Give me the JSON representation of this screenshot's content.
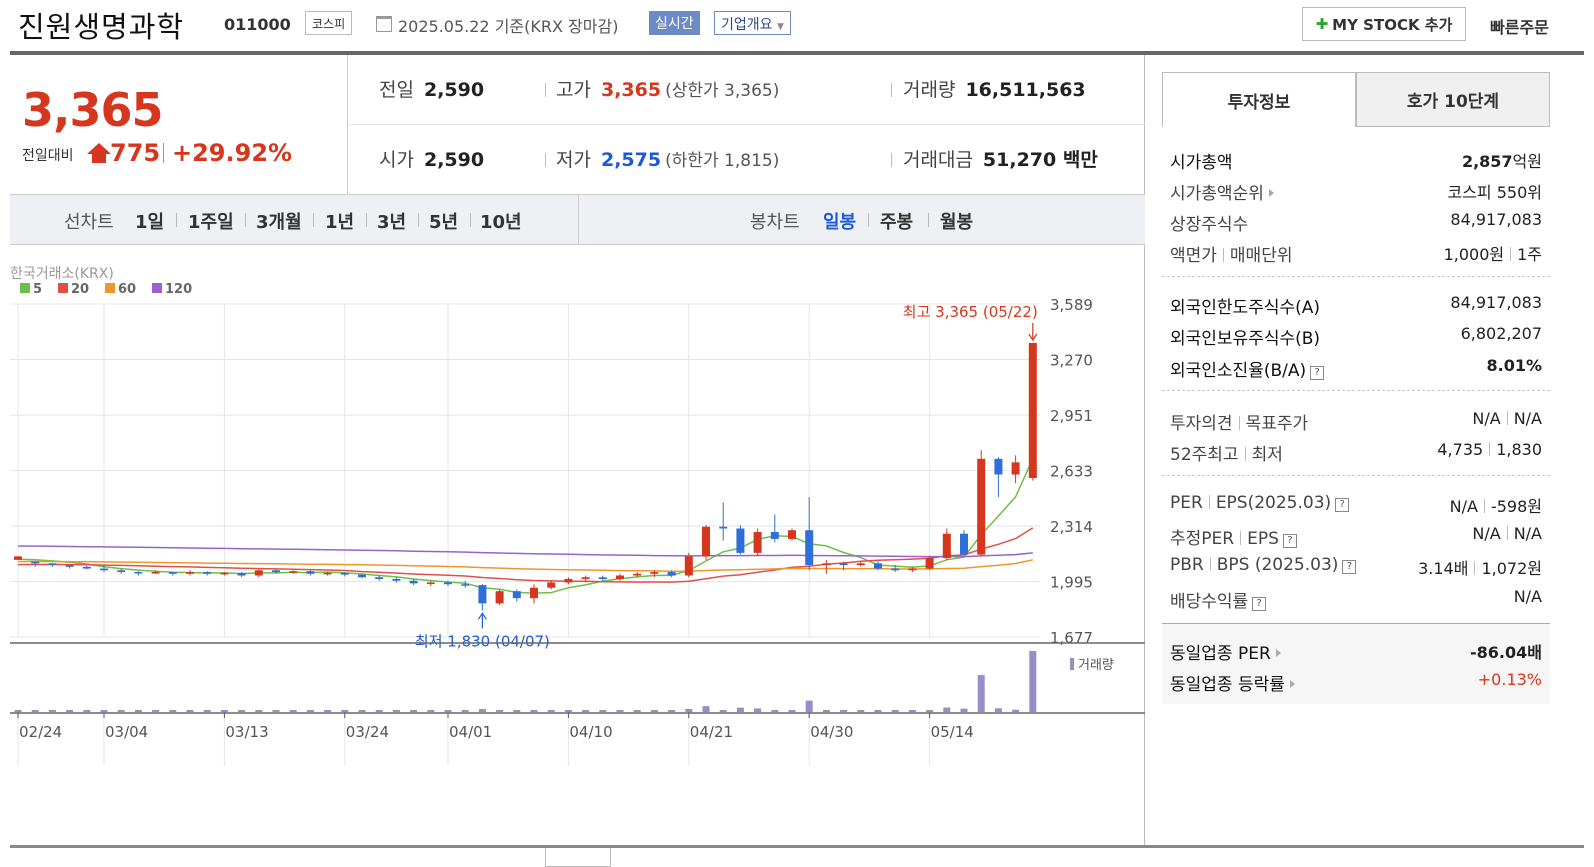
{
  "header": {
    "stock_name": "진원생명과학",
    "stock_code": "011000",
    "market": "코스피",
    "date_text": "2025.05.22  기준(KRX 장마감)",
    "realtime_label": "실시간",
    "company_overview_label": "기업개요",
    "my_stock_label": "MY STOCK 추가",
    "quick_order_label": "빠른주문"
  },
  "price": {
    "current": "3,365",
    "change_label": "전일대비",
    "change": "775",
    "change_pct": "+29.92%"
  },
  "quotes": {
    "prev_close_label": "전일",
    "prev_close": "2,590",
    "high_label": "고가",
    "high": "3,365",
    "upper_limit": "(상한가 3,365)",
    "volume_label": "거래량",
    "volume": "16,511,563",
    "open_label": "시가",
    "open": "2,590",
    "low_label": "저가",
    "low": "2,575",
    "lower_limit": "(하한가 1,815)",
    "value_label": "거래대금",
    "value": "51,270 백만"
  },
  "period_tabs": {
    "line_label": "선차트",
    "items": [
      "1일",
      "1주일",
      "3개월",
      "1년",
      "3년",
      "5년",
      "10년"
    ],
    "candle_label": "봉차트",
    "candle_items": [
      "일봉",
      "주봉",
      "월봉"
    ],
    "selected": "일봉"
  },
  "chart_data": {
    "type": "candlestick",
    "source_label": "한국거래소(KRX)",
    "ma_legend": [
      {
        "name": "5",
        "color": "#6cbf4b"
      },
      {
        "name": "20",
        "color": "#e0504a"
      },
      {
        "name": "60",
        "color": "#f0962d"
      },
      {
        "name": "120",
        "color": "#9a62d1"
      }
    ],
    "up_color": "#d6361e",
    "down_color": "#2f6fd8",
    "y_ticks": [
      "3,589",
      "3,270",
      "2,951",
      "2,633",
      "2,314",
      "1,995",
      "1,677"
    ],
    "ylim": [
      1677,
      3589
    ],
    "x_ticks": [
      {
        "label": "02/24",
        "index": 0
      },
      {
        "label": "03/04",
        "index": 5
      },
      {
        "label": "03/13",
        "index": 12
      },
      {
        "label": "03/24",
        "index": 19
      },
      {
        "label": "04/01",
        "index": 25
      },
      {
        "label": "04/10",
        "index": 32
      },
      {
        "label": "04/21",
        "index": 39
      },
      {
        "label": "04/30",
        "index": 46
      },
      {
        "label": "05/14",
        "index": 53
      }
    ],
    "annotation_high": "최고 3,365 (05/22)",
    "annotation_low": "최저 1,830 (04/07)",
    "volume_label": "거래량",
    "candles": [
      [
        2120,
        2140,
        2120,
        2140
      ],
      [
        2110,
        2110,
        2080,
        2100
      ],
      [
        2100,
        2100,
        2080,
        2090
      ],
      [
        2090,
        2090,
        2070,
        2080
      ],
      [
        2080,
        2085,
        2065,
        2070
      ],
      [
        2070,
        2090,
        2050,
        2060
      ],
      [
        2060,
        2070,
        2040,
        2050
      ],
      [
        2050,
        2055,
        2030,
        2045
      ],
      [
        2045,
        2060,
        2040,
        2050
      ],
      [
        2050,
        2050,
        2030,
        2040
      ],
      [
        2040,
        2060,
        2030,
        2050
      ],
      [
        2050,
        2055,
        2030,
        2040
      ],
      [
        2040,
        2050,
        2030,
        2045
      ],
      [
        2045,
        2050,
        2020,
        2030
      ],
      [
        2030,
        2070,
        2020,
        2060
      ],
      [
        2060,
        2065,
        2040,
        2050
      ],
      [
        2050,
        2060,
        2040,
        2055
      ],
      [
        2055,
        2060,
        2030,
        2040
      ],
      [
        2040,
        2050,
        2030,
        2045
      ],
      [
        2045,
        2050,
        2025,
        2035
      ],
      [
        2035,
        2040,
        2015,
        2020
      ],
      [
        2020,
        2030,
        2000,
        2010
      ],
      [
        2010,
        2020,
        1990,
        2000
      ],
      [
        2000,
        2010,
        1975,
        1985
      ],
      [
        1985,
        2000,
        1970,
        1990
      ],
      [
        1990,
        2000,
        1970,
        1980
      ],
      [
        1980,
        2000,
        1960,
        1975
      ],
      [
        1975,
        1980,
        1830,
        1870
      ],
      [
        1870,
        1950,
        1860,
        1940
      ],
      [
        1940,
        1950,
        1880,
        1900
      ],
      [
        1900,
        1980,
        1870,
        1960
      ],
      [
        1960,
        2000,
        1950,
        1990
      ],
      [
        1990,
        2020,
        1980,
        2010
      ],
      [
        2010,
        2030,
        1990,
        2020
      ],
      [
        2020,
        2030,
        2000,
        2010
      ],
      [
        2010,
        2040,
        2000,
        2030
      ],
      [
        2030,
        2050,
        2020,
        2040
      ],
      [
        2040,
        2060,
        2020,
        2050
      ],
      [
        2050,
        2060,
        2020,
        2030
      ],
      [
        2030,
        2160,
        2020,
        2140
      ],
      [
        2140,
        2320,
        2120,
        2310
      ],
      [
        2310,
        2450,
        2230,
        2300
      ],
      [
        2300,
        2320,
        2150,
        2160
      ],
      [
        2160,
        2300,
        2140,
        2280
      ],
      [
        2280,
        2380,
        2220,
        2240
      ],
      [
        2240,
        2300,
        2230,
        2290
      ],
      [
        2290,
        2480,
        2060,
        2090
      ],
      [
        2090,
        2120,
        2040,
        2100
      ],
      [
        2100,
        2110,
        2060,
        2090
      ],
      [
        2090,
        2110,
        2080,
        2100
      ],
      [
        2100,
        2120,
        2060,
        2070
      ],
      [
        2070,
        2090,
        2050,
        2060
      ],
      [
        2060,
        2080,
        2050,
        2070
      ],
      [
        2070,
        2140,
        2060,
        2130
      ],
      [
        2130,
        2300,
        2120,
        2270
      ],
      [
        2270,
        2290,
        2150,
        2150
      ],
      [
        2150,
        2750,
        2140,
        2700
      ],
      [
        2700,
        2710,
        2480,
        2610
      ],
      [
        2610,
        2720,
        2560,
        2680
      ],
      [
        2590,
        3365,
        2575,
        3365
      ]
    ]
  },
  "side": {
    "tab_invest": "투자정보",
    "tab_hoga": "호가 10단계",
    "market_cap_label": "시가총액",
    "market_cap": "2,857",
    "market_cap_unit": "억원",
    "cap_rank_label": "시가총액순위",
    "cap_rank": "코스피 550위",
    "shares_label": "상장주식수",
    "shares": "84,917,083",
    "par_label": "액면가",
    "unit_label": "매매단위",
    "par": "1,000원",
    "unit": "1주",
    "foreign_limit_label": "외국인한도주식수(A)",
    "foreign_limit": "84,917,083",
    "foreign_hold_label": "외국인보유주식수(B)",
    "foreign_hold": "6,802,207",
    "foreign_ratio_label": "외국인소진율(B/A)",
    "foreign_ratio": "8.01%",
    "opinion_label": "투자의견",
    "target_label": "목표주가",
    "opinion": "N/A",
    "target": "N/A",
    "w52_high_label": "52주최고",
    "w52_low_label": "최저",
    "w52_high": "4,735",
    "w52_low": "1,830",
    "per_label": "PER",
    "eps_label": "EPS(2025.03)",
    "per": "N/A",
    "eps": "-598원",
    "est_per_label": "추정PER",
    "est_eps_label": "EPS",
    "est_per": "N/A",
    "est_eps": "N/A",
    "pbr_label": "PBR",
    "bps_label": "BPS (2025.03)",
    "pbr": "3.14배",
    "bps": "1,072원",
    "div_label": "배당수익률",
    "div": "N/A",
    "sector_per_label": "동일업종 PER",
    "sector_per": "-86.04배",
    "sector_chg_label": "동일업종 등락률",
    "sector_chg": "+0.13%"
  }
}
